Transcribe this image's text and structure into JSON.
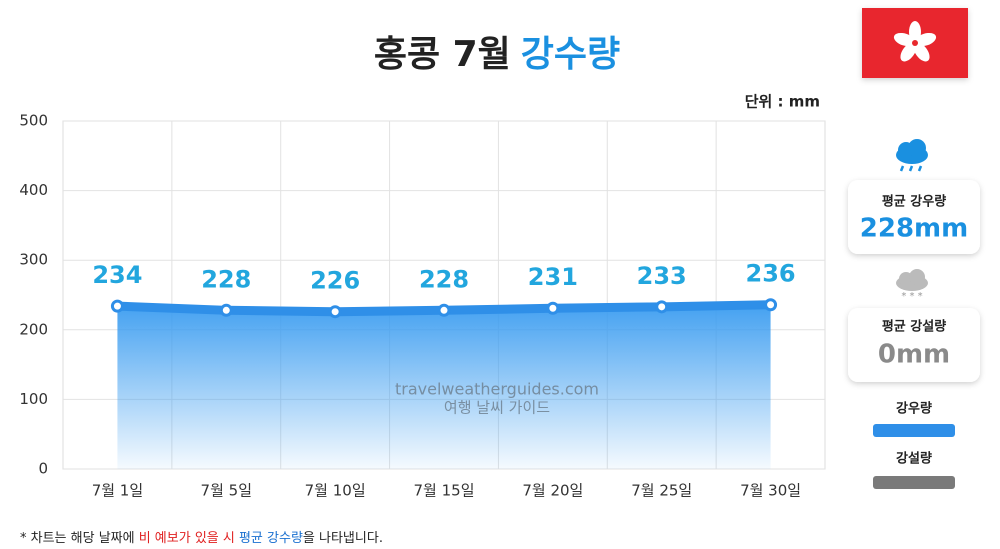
{
  "chart_data": {
    "type": "line",
    "title": "홍콩 7월",
    "title_highlight": "강수량",
    "unit_label": "단위 : mm",
    "categories": [
      "7월 1일",
      "7월 5일",
      "7월 10일",
      "7월 15일",
      "7월 20일",
      "7월 25일",
      "7월 30일"
    ],
    "series": [
      {
        "name": "강우량",
        "color": "#2f8fe8",
        "values": [
          234,
          228,
          226,
          228,
          231,
          233,
          236
        ]
      }
    ],
    "snow_legend": {
      "name": "강설량",
      "color": "#7a7a7a"
    },
    "ylim": [
      0,
      500
    ],
    "yticks": [
      0,
      100,
      200,
      300,
      400,
      500
    ],
    "grid": true,
    "watermark": [
      "travelweatherguides.com",
      "여행 날씨 가이드"
    ],
    "summary": [
      {
        "title": "평균 강우량",
        "label": "228mm",
        "color": "#1a90e0"
      },
      {
        "title": "평균 강설량",
        "label": "0mm",
        "color": "#8a8a8a"
      }
    ],
    "footnote": [
      "* 차트는 해당 날짜에 ",
      "비 예보가 있을 시",
      " 평균 강수량",
      "을 나타냅니다."
    ]
  }
}
